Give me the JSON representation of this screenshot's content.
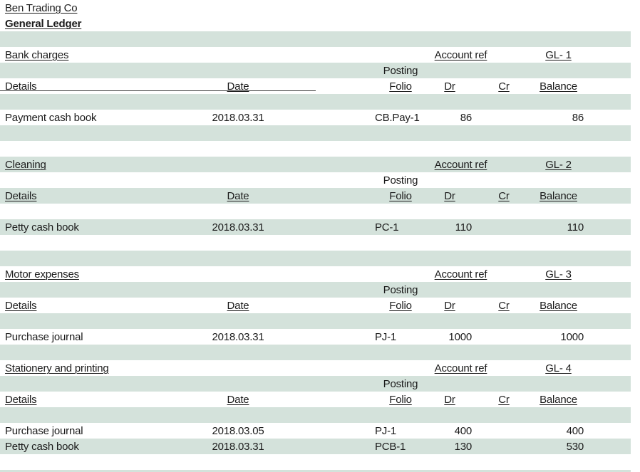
{
  "document": {
    "company_title": "Ben Trading Co",
    "report_title": "General Ledger"
  },
  "colors": {
    "band_green": "#d4e2db",
    "text": "#1b1b1b"
  },
  "ledger": {
    "rows": [
      {
        "name": "title-row-company",
        "bg": "white",
        "cells": [
          {
            "col": "details",
            "name": "company-title",
            "text": "Ben Trading Co",
            "underline": true
          }
        ]
      },
      {
        "name": "title-row-report",
        "bg": "white",
        "cells": [
          {
            "col": "details",
            "name": "report-title",
            "text": "General Ledger",
            "underline": true,
            "bold": true
          }
        ]
      },
      {
        "name": "blank-row",
        "bg": "green",
        "cells": []
      },
      {
        "name": "section-header-row",
        "bg": "white",
        "cells": [
          {
            "col": "details",
            "name": "section-title",
            "text": "Bank charges",
            "underline": true
          },
          {
            "col": "accountref",
            "name": "account-ref-label",
            "text": "Account ref",
            "underline": true
          },
          {
            "col": "glref",
            "name": "account-ref-value",
            "text": "GL- 1",
            "underline": true
          }
        ]
      },
      {
        "name": "posting-label-row",
        "bg": "green",
        "cells": [
          {
            "col": "folio",
            "name": "posting-label",
            "text": "Posting",
            "align": "center"
          }
        ]
      },
      {
        "name": "column-header-row",
        "bg": "white",
        "rule": true,
        "cells": [
          {
            "col": "details",
            "name": "details-header",
            "text": "Details"
          },
          {
            "col": "date",
            "name": "date-header",
            "text": "Date",
            "underline": true
          },
          {
            "col": "folio",
            "name": "folio-header",
            "text": "Folio",
            "underline": true,
            "align": "center"
          },
          {
            "col": "dr",
            "name": "dr-header",
            "text": "Dr",
            "underline": true,
            "align": "center"
          },
          {
            "col": "cr",
            "name": "cr-header",
            "text": "Cr",
            "underline": true,
            "align": "center"
          },
          {
            "col": "balance",
            "name": "balance-header",
            "text": "Balance",
            "underline": true,
            "align": "center"
          }
        ]
      },
      {
        "name": "blank-row",
        "bg": "green",
        "cells": []
      },
      {
        "name": "ledger-entry-row",
        "bg": "white",
        "cells": [
          {
            "col": "details",
            "name": "entry-details",
            "text": "Payment cash book"
          },
          {
            "col": "date",
            "name": "entry-date",
            "text": "2018.03.31"
          },
          {
            "col": "folio",
            "name": "entry-folio",
            "text": "CB.Pay-1"
          },
          {
            "col": "dr",
            "name": "entry-dr",
            "text": "86"
          },
          {
            "col": "balance",
            "name": "entry-balance",
            "text": "86"
          }
        ]
      },
      {
        "name": "blank-row",
        "bg": "green",
        "cells": []
      },
      {
        "name": "blank-row",
        "bg": "white",
        "cells": []
      },
      {
        "name": "section-header-row",
        "bg": "green",
        "cells": [
          {
            "col": "details",
            "name": "section-title",
            "text": "Cleaning",
            "underline": true
          },
          {
            "col": "accountref",
            "name": "account-ref-label",
            "text": "Account ref",
            "underline": true
          },
          {
            "col": "glref",
            "name": "account-ref-value",
            "text": "GL- 2",
            "underline": true
          }
        ]
      },
      {
        "name": "posting-label-row",
        "bg": "white",
        "cells": [
          {
            "col": "folio",
            "name": "posting-label",
            "text": "Posting",
            "align": "center"
          }
        ]
      },
      {
        "name": "column-header-row",
        "bg": "green",
        "cells": [
          {
            "col": "details",
            "name": "details-header",
            "text": "Details",
            "underline": true
          },
          {
            "col": "date",
            "name": "date-header",
            "text": "Date",
            "underline": true
          },
          {
            "col": "folio",
            "name": "folio-header",
            "text": "Folio",
            "underline": true,
            "align": "center"
          },
          {
            "col": "dr",
            "name": "dr-header",
            "text": "Dr",
            "underline": true,
            "align": "center"
          },
          {
            "col": "cr",
            "name": "cr-header",
            "text": "Cr",
            "underline": true,
            "align": "center"
          },
          {
            "col": "balance",
            "name": "balance-header",
            "text": "Balance",
            "underline": true,
            "align": "center"
          }
        ]
      },
      {
        "name": "blank-row",
        "bg": "white",
        "cells": []
      },
      {
        "name": "ledger-entry-row",
        "bg": "green",
        "cells": [
          {
            "col": "details",
            "name": "entry-details",
            "text": "Petty cash book"
          },
          {
            "col": "date",
            "name": "entry-date",
            "text": "2018.03.31"
          },
          {
            "col": "folio",
            "name": "entry-folio",
            "text": "PC-1"
          },
          {
            "col": "dr",
            "name": "entry-dr",
            "text": "110"
          },
          {
            "col": "balance",
            "name": "entry-balance",
            "text": "110"
          }
        ]
      },
      {
        "name": "blank-row",
        "bg": "white",
        "cells": []
      },
      {
        "name": "blank-row",
        "bg": "green",
        "cells": []
      },
      {
        "name": "section-header-row",
        "bg": "white",
        "cells": [
          {
            "col": "details",
            "name": "section-title",
            "text": "Motor expenses",
            "underline": true
          },
          {
            "col": "accountref",
            "name": "account-ref-label",
            "text": "Account ref",
            "underline": true
          },
          {
            "col": "glref",
            "name": "account-ref-value",
            "text": "GL- 3",
            "underline": true
          }
        ]
      },
      {
        "name": "posting-label-row",
        "bg": "green",
        "cells": [
          {
            "col": "folio",
            "name": "posting-label",
            "text": "Posting",
            "align": "center"
          }
        ]
      },
      {
        "name": "column-header-row",
        "bg": "white",
        "cells": [
          {
            "col": "details",
            "name": "details-header",
            "text": "Details",
            "underline": true
          },
          {
            "col": "date",
            "name": "date-header",
            "text": "Date",
            "underline": true
          },
          {
            "col": "folio",
            "name": "folio-header",
            "text": "Folio",
            "underline": true,
            "align": "center"
          },
          {
            "col": "dr",
            "name": "dr-header",
            "text": "Dr",
            "underline": true,
            "align": "center"
          },
          {
            "col": "cr",
            "name": "cr-header",
            "text": "Cr",
            "underline": true,
            "align": "center"
          },
          {
            "col": "balance",
            "name": "balance-header",
            "text": "Balance",
            "underline": true,
            "align": "center"
          }
        ]
      },
      {
        "name": "blank-row",
        "bg": "green",
        "cells": []
      },
      {
        "name": "ledger-entry-row",
        "bg": "white",
        "cells": [
          {
            "col": "details",
            "name": "entry-details",
            "text": "Purchase journal"
          },
          {
            "col": "date",
            "name": "entry-date",
            "text": "2018.03.31"
          },
          {
            "col": "folio",
            "name": "entry-folio",
            "text": "PJ-1"
          },
          {
            "col": "dr",
            "name": "entry-dr",
            "text": "1000"
          },
          {
            "col": "balance",
            "name": "entry-balance",
            "text": "1000"
          }
        ]
      },
      {
        "name": "blank-row",
        "bg": "green",
        "cells": []
      },
      {
        "name": "section-header-row",
        "bg": "white",
        "cells": [
          {
            "col": "details",
            "name": "section-title",
            "text": "Stationery and printing",
            "underline": true
          },
          {
            "col": "accountref",
            "name": "account-ref-label",
            "text": "Account ref",
            "underline": true
          },
          {
            "col": "glref",
            "name": "account-ref-value",
            "text": "GL- 4",
            "underline": true
          }
        ]
      },
      {
        "name": "posting-label-row",
        "bg": "green",
        "cells": [
          {
            "col": "folio",
            "name": "posting-label",
            "text": "Posting",
            "align": "center"
          }
        ]
      },
      {
        "name": "column-header-row",
        "bg": "white",
        "cells": [
          {
            "col": "details",
            "name": "details-header",
            "text": "Details",
            "underline": true
          },
          {
            "col": "date",
            "name": "date-header",
            "text": "Date",
            "underline": true
          },
          {
            "col": "folio",
            "name": "folio-header",
            "text": "Folio",
            "underline": true,
            "align": "center"
          },
          {
            "col": "dr",
            "name": "dr-header",
            "text": "Dr",
            "underline": true,
            "align": "center"
          },
          {
            "col": "cr",
            "name": "cr-header",
            "text": "Cr",
            "underline": true,
            "align": "center"
          },
          {
            "col": "balance",
            "name": "balance-header",
            "text": "Balance",
            "underline": true,
            "align": "center"
          }
        ]
      },
      {
        "name": "blank-row",
        "bg": "green",
        "cells": []
      },
      {
        "name": "ledger-entry-row",
        "bg": "white",
        "cells": [
          {
            "col": "details",
            "name": "entry-details",
            "text": "Purchase journal"
          },
          {
            "col": "date",
            "name": "entry-date",
            "text": "2018.03.05"
          },
          {
            "col": "folio",
            "name": "entry-folio",
            "text": "PJ-1"
          },
          {
            "col": "dr",
            "name": "entry-dr",
            "text": "400"
          },
          {
            "col": "balance",
            "name": "entry-balance",
            "text": "400"
          }
        ]
      },
      {
        "name": "ledger-entry-row",
        "bg": "green",
        "cells": [
          {
            "col": "details",
            "name": "entry-details",
            "text": "Petty cash book"
          },
          {
            "col": "date",
            "name": "entry-date",
            "text": "2018.03.31"
          },
          {
            "col": "folio",
            "name": "entry-folio",
            "text": "PCB-1"
          },
          {
            "col": "dr",
            "name": "entry-dr",
            "text": "130"
          },
          {
            "col": "balance",
            "name": "entry-balance",
            "text": "530"
          }
        ]
      },
      {
        "name": "blank-row",
        "bg": "white",
        "cells": []
      },
      {
        "name": "blank-row",
        "bg": "green",
        "partial": true,
        "cells": []
      }
    ]
  }
}
